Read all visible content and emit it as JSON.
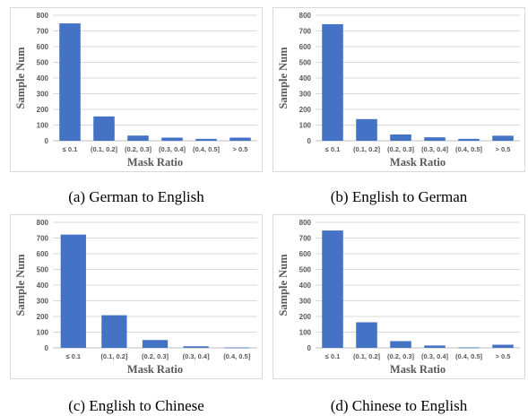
{
  "chart_data": [
    {
      "type": "bar",
      "caption": "(a) German to English",
      "categories": [
        "≤ 0.1",
        "(0.1, 0.2]",
        "(0.2, 0.3]",
        "(0.3, 0.4]",
        "(0.4, 0.5]",
        "> 0.5"
      ],
      "values": [
        748,
        155,
        33,
        20,
        12,
        20
      ],
      "xlabel": "Mask Ratio",
      "ylabel": "Sample Num",
      "ylim": [
        0,
        800
      ],
      "yticks": [
        0,
        100,
        200,
        300,
        400,
        500,
        600,
        700,
        800
      ],
      "color": "#4472c4",
      "grid": true
    },
    {
      "type": "bar",
      "caption": "(b) English to German",
      "categories": [
        "≤ 0.1",
        "(0.1, 0.2]",
        "(0.2, 0.3]",
        "(0.3, 0.4]",
        "(0.4, 0.5]",
        "> 0.5"
      ],
      "values": [
        743,
        138,
        40,
        22,
        12,
        32
      ],
      "xlabel": "Mask Ratio",
      "ylabel": "Sample Num",
      "ylim": [
        0,
        800
      ],
      "yticks": [
        0,
        100,
        200,
        300,
        400,
        500,
        600,
        700,
        800
      ],
      "color": "#4472c4",
      "grid": true
    },
    {
      "type": "bar",
      "caption": "(c) English to Chinese",
      "categories": [
        "≤ 0.1",
        "(0.1, 0.2]",
        "(0.2, 0.3]",
        "(0.3, 0.4]",
        "(0.4, 0.5]"
      ],
      "values": [
        722,
        208,
        50,
        10,
        2
      ],
      "xlabel": "Mask Ratio",
      "ylabel": "Sample Num",
      "ylim": [
        0,
        800
      ],
      "yticks": [
        0,
        100,
        200,
        300,
        400,
        500,
        600,
        700,
        800
      ],
      "color": "#4472c4",
      "grid": true
    },
    {
      "type": "bar",
      "caption": "(d) Chinese to English",
      "categories": [
        "≤ 0.1",
        "(0.1, 0.2]",
        "(0.2, 0.3]",
        "(0.3, 0.4]",
        "(0.4, 0.5]",
        "> 0.5"
      ],
      "values": [
        748,
        163,
        43,
        15,
        3,
        20
      ],
      "xlabel": "Mask Ratio",
      "ylabel": "Sample Num",
      "ylim": [
        0,
        800
      ],
      "yticks": [
        0,
        100,
        200,
        300,
        400,
        500,
        600,
        700,
        800
      ],
      "color": "#4472c4",
      "grid": true
    }
  ]
}
